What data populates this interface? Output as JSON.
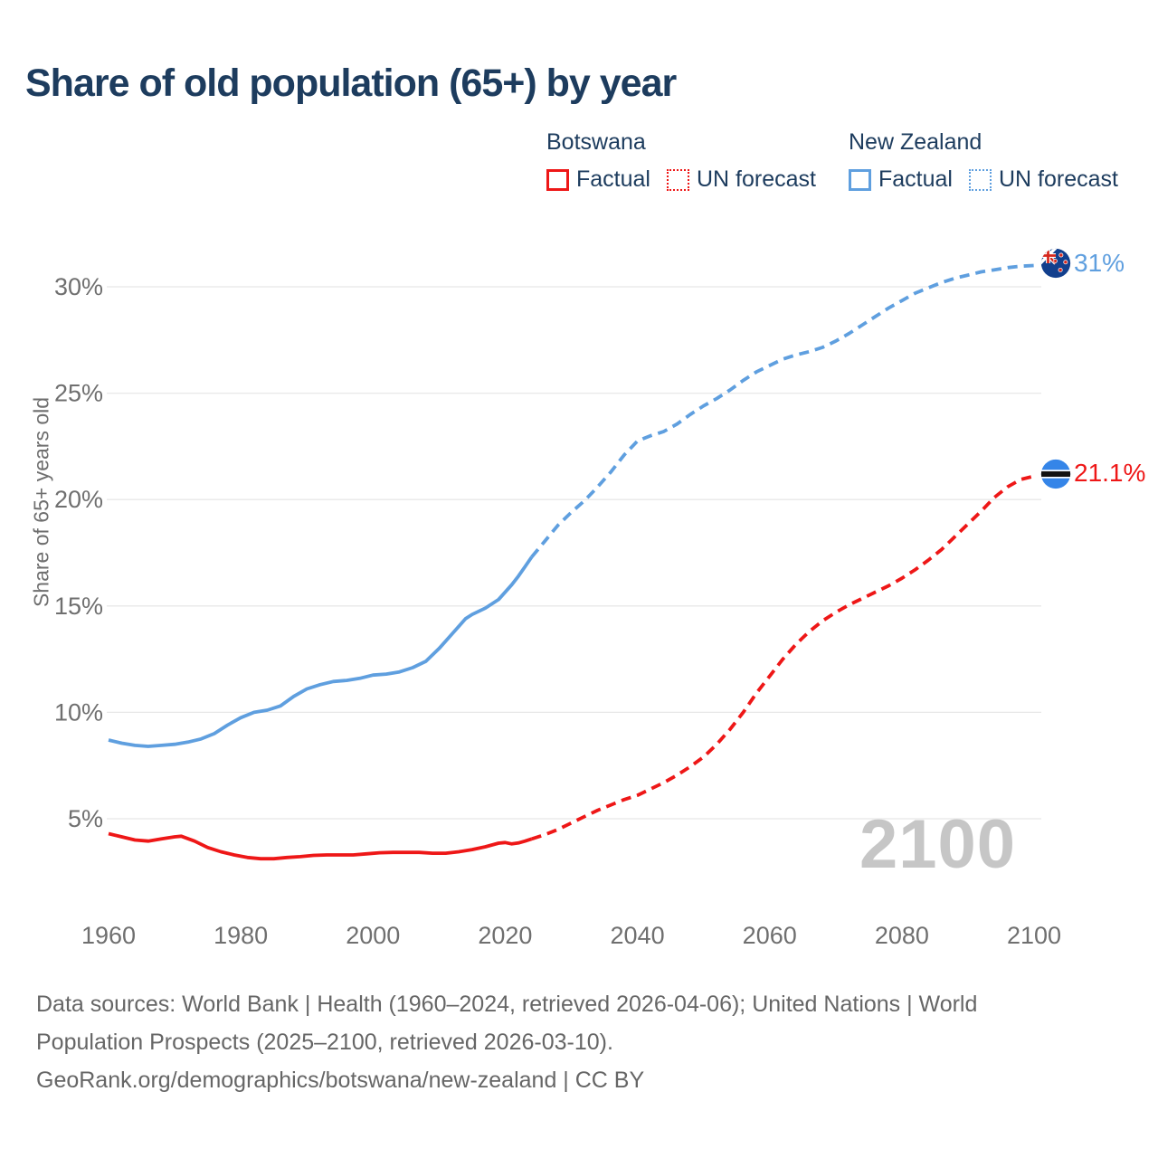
{
  "header": {
    "title": "Share of old population (65+) by year"
  },
  "legend": {
    "groups": [
      {
        "name": "Botswana",
        "items": [
          {
            "label": "Factual",
            "style": "solid"
          },
          {
            "label": "UN forecast",
            "style": "dotted"
          }
        ]
      },
      {
        "name": "New Zealand",
        "items": [
          {
            "label": "Factual",
            "style": "solid"
          },
          {
            "label": "UN forecast",
            "style": "dotted"
          }
        ]
      }
    ]
  },
  "chart_data": {
    "type": "line",
    "title": "Share of old population (65+) by year",
    "xlabel": "",
    "ylabel": "Share of 65+ years old",
    "x_range": [
      1960,
      2100
    ],
    "y_range": [
      0,
      32
    ],
    "grid": "horizontal-only",
    "legend_position": "top-right",
    "yticks": [
      5,
      10,
      15,
      20,
      25,
      30
    ],
    "ytick_suffix": "%",
    "xticks": [
      1960,
      1980,
      2000,
      2020,
      2040,
      2060,
      2080,
      2100
    ],
    "watermark": "2100",
    "colors": {
      "botswana": "#ee1717",
      "new_zealand": "#5f9fdf",
      "grid": "#e8e8e8",
      "tick_text": "#6f6f6f",
      "title_text": "#1d3c5e",
      "watermark": "#c6c6c6",
      "source_text": "#666666"
    },
    "series": [
      {
        "name": "Botswana Factual",
        "style": "solid",
        "color": "#ee1717",
        "points": [
          [
            1960,
            4.3
          ],
          [
            1962,
            4.15
          ],
          [
            1964,
            4.0
          ],
          [
            1966,
            3.95
          ],
          [
            1968,
            4.05
          ],
          [
            1970,
            4.15
          ],
          [
            1971,
            4.18
          ],
          [
            1973,
            3.95
          ],
          [
            1975,
            3.65
          ],
          [
            1977,
            3.45
          ],
          [
            1979,
            3.3
          ],
          [
            1981,
            3.18
          ],
          [
            1983,
            3.12
          ],
          [
            1985,
            3.12
          ],
          [
            1987,
            3.18
          ],
          [
            1989,
            3.22
          ],
          [
            1991,
            3.28
          ],
          [
            1993,
            3.3
          ],
          [
            1995,
            3.3
          ],
          [
            1997,
            3.3
          ],
          [
            1999,
            3.35
          ],
          [
            2001,
            3.4
          ],
          [
            2003,
            3.42
          ],
          [
            2005,
            3.42
          ],
          [
            2007,
            3.42
          ],
          [
            2009,
            3.38
          ],
          [
            2011,
            3.38
          ],
          [
            2013,
            3.45
          ],
          [
            2015,
            3.55
          ],
          [
            2017,
            3.68
          ],
          [
            2019,
            3.85
          ],
          [
            2020,
            3.88
          ],
          [
            2021,
            3.82
          ],
          [
            2022,
            3.86
          ],
          [
            2023,
            3.95
          ],
          [
            2024,
            4.05
          ]
        ]
      },
      {
        "name": "Botswana UN forecast",
        "style": "dashed",
        "color": "#ee1717",
        "points": [
          [
            2024,
            4.05
          ],
          [
            2026,
            4.25
          ],
          [
            2028,
            4.5
          ],
          [
            2030,
            4.8
          ],
          [
            2032,
            5.1
          ],
          [
            2034,
            5.4
          ],
          [
            2036,
            5.65
          ],
          [
            2038,
            5.9
          ],
          [
            2040,
            6.1
          ],
          [
            2042,
            6.4
          ],
          [
            2044,
            6.7
          ],
          [
            2046,
            7.05
          ],
          [
            2048,
            7.45
          ],
          [
            2050,
            7.9
          ],
          [
            2052,
            8.5
          ],
          [
            2054,
            9.2
          ],
          [
            2056,
            10.0
          ],
          [
            2058,
            10.9
          ],
          [
            2060,
            11.7
          ],
          [
            2062,
            12.5
          ],
          [
            2064,
            13.2
          ],
          [
            2066,
            13.8
          ],
          [
            2068,
            14.3
          ],
          [
            2070,
            14.7
          ],
          [
            2072,
            15.05
          ],
          [
            2074,
            15.35
          ],
          [
            2076,
            15.65
          ],
          [
            2078,
            15.95
          ],
          [
            2080,
            16.3
          ],
          [
            2082,
            16.7
          ],
          [
            2084,
            17.15
          ],
          [
            2086,
            17.65
          ],
          [
            2088,
            18.25
          ],
          [
            2090,
            18.85
          ],
          [
            2092,
            19.45
          ],
          [
            2094,
            20.1
          ],
          [
            2096,
            20.6
          ],
          [
            2098,
            20.95
          ],
          [
            2100,
            21.1
          ]
        ]
      },
      {
        "name": "New Zealand Factual",
        "style": "solid",
        "color": "#5f9fdf",
        "points": [
          [
            1960,
            8.7
          ],
          [
            1962,
            8.55
          ],
          [
            1964,
            8.45
          ],
          [
            1966,
            8.4
          ],
          [
            1968,
            8.45
          ],
          [
            1970,
            8.5
          ],
          [
            1972,
            8.6
          ],
          [
            1974,
            8.75
          ],
          [
            1976,
            9.0
          ],
          [
            1978,
            9.4
          ],
          [
            1980,
            9.75
          ],
          [
            1982,
            10.0
          ],
          [
            1984,
            10.1
          ],
          [
            1986,
            10.3
          ],
          [
            1988,
            10.75
          ],
          [
            1990,
            11.1
          ],
          [
            1992,
            11.3
          ],
          [
            1994,
            11.45
          ],
          [
            1996,
            11.5
          ],
          [
            1998,
            11.6
          ],
          [
            2000,
            11.75
          ],
          [
            2002,
            11.8
          ],
          [
            2004,
            11.9
          ],
          [
            2006,
            12.1
          ],
          [
            2008,
            12.4
          ],
          [
            2010,
            13.0
          ],
          [
            2012,
            13.7
          ],
          [
            2014,
            14.4
          ],
          [
            2015,
            14.6
          ],
          [
            2017,
            14.9
          ],
          [
            2019,
            15.3
          ],
          [
            2021,
            16.0
          ],
          [
            2022,
            16.4
          ],
          [
            2023,
            16.85
          ],
          [
            2024,
            17.3
          ]
        ]
      },
      {
        "name": "New Zealand UN forecast",
        "style": "dashed",
        "color": "#5f9fdf",
        "points": [
          [
            2024,
            17.3
          ],
          [
            2026,
            18.05
          ],
          [
            2028,
            18.8
          ],
          [
            2030,
            19.4
          ],
          [
            2032,
            19.95
          ],
          [
            2034,
            20.6
          ],
          [
            2036,
            21.3
          ],
          [
            2038,
            22.1
          ],
          [
            2040,
            22.75
          ],
          [
            2042,
            23.0
          ],
          [
            2044,
            23.2
          ],
          [
            2046,
            23.55
          ],
          [
            2048,
            24.0
          ],
          [
            2050,
            24.4
          ],
          [
            2052,
            24.75
          ],
          [
            2054,
            25.15
          ],
          [
            2056,
            25.6
          ],
          [
            2058,
            26.0
          ],
          [
            2060,
            26.3
          ],
          [
            2062,
            26.6
          ],
          [
            2064,
            26.8
          ],
          [
            2066,
            26.95
          ],
          [
            2068,
            27.15
          ],
          [
            2070,
            27.45
          ],
          [
            2072,
            27.8
          ],
          [
            2074,
            28.2
          ],
          [
            2076,
            28.6
          ],
          [
            2078,
            29.0
          ],
          [
            2080,
            29.35
          ],
          [
            2082,
            29.7
          ],
          [
            2084,
            29.95
          ],
          [
            2086,
            30.2
          ],
          [
            2088,
            30.4
          ],
          [
            2090,
            30.55
          ],
          [
            2092,
            30.7
          ],
          [
            2094,
            30.8
          ],
          [
            2096,
            30.9
          ],
          [
            2098,
            30.97
          ],
          [
            2100,
            31.0
          ]
        ]
      }
    ],
    "end_labels": [
      {
        "series": "New Zealand",
        "text": "31%",
        "value": 31,
        "year": 2100,
        "flag": "new-zealand"
      },
      {
        "series": "Botswana",
        "text": "21.1%",
        "value": 21.1,
        "year": 2100,
        "flag": "botswana"
      }
    ]
  },
  "footer": {
    "lines": [
      "Data sources: World Bank | Health (1960–2024, retrieved 2026-04-06); United Nations | World",
      "Population Prospects (2025–2100, retrieved 2026-03-10).",
      "GeoRank.org/demographics/botswana/new-zealand | CC BY"
    ]
  }
}
